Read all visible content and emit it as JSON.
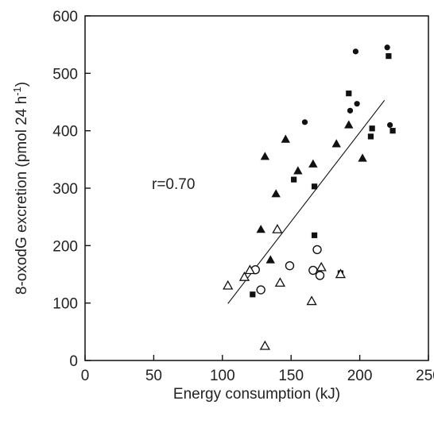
{
  "chart_data": {
    "type": "scatter",
    "xlabel": "Energy consumption (kJ)",
    "ylabel_main": "8-oxodG excretion (pmol 24 h",
    "ylabel_sup": "-1",
    "ylabel_close": ")",
    "xlim": [
      0,
      250
    ],
    "ylim": [
      0,
      600
    ],
    "xticks": [
      0,
      50,
      100,
      150,
      200,
      250
    ],
    "yticks": [
      0,
      100,
      200,
      300,
      400,
      500,
      600
    ],
    "grid": false,
    "annotation": "r=0.70",
    "series": [
      {
        "marker": "filled-circle",
        "points": [
          [
            160,
            415
          ],
          [
            193,
            435
          ],
          [
            197,
            538
          ],
          [
            198,
            447
          ],
          [
            220,
            545
          ],
          [
            222,
            410
          ]
        ]
      },
      {
        "marker": "filled-square",
        "points": [
          [
            122,
            115
          ],
          [
            152,
            315
          ],
          [
            167,
            218
          ],
          [
            167,
            303
          ],
          [
            186,
            152
          ],
          [
            192,
            465
          ],
          [
            208,
            390
          ],
          [
            209,
            404
          ],
          [
            221,
            530
          ],
          [
            224,
            400
          ]
        ]
      },
      {
        "marker": "filled-triangle",
        "points": [
          [
            128,
            228
          ],
          [
            131,
            355
          ],
          [
            135,
            175
          ],
          [
            139,
            290
          ],
          [
            146,
            385
          ],
          [
            155,
            330
          ],
          [
            166,
            342
          ],
          [
            183,
            377
          ],
          [
            192,
            410
          ],
          [
            202,
            352
          ]
        ]
      },
      {
        "marker": "open-circle",
        "points": [
          [
            124,
            158
          ],
          [
            128,
            123
          ],
          [
            149,
            165
          ],
          [
            166,
            157
          ],
          [
            169,
            193
          ],
          [
            171,
            148
          ]
        ]
      },
      {
        "marker": "open-triangle",
        "points": [
          [
            104,
            130
          ],
          [
            116,
            145
          ],
          [
            120,
            157
          ],
          [
            131,
            25
          ],
          [
            140,
            228
          ],
          [
            142,
            135
          ],
          [
            165,
            103
          ],
          [
            172,
            162
          ],
          [
            186,
            150
          ]
        ]
      }
    ],
    "trendline": {
      "x": [
        104,
        218
      ],
      "y": [
        99,
        453
      ]
    }
  }
}
